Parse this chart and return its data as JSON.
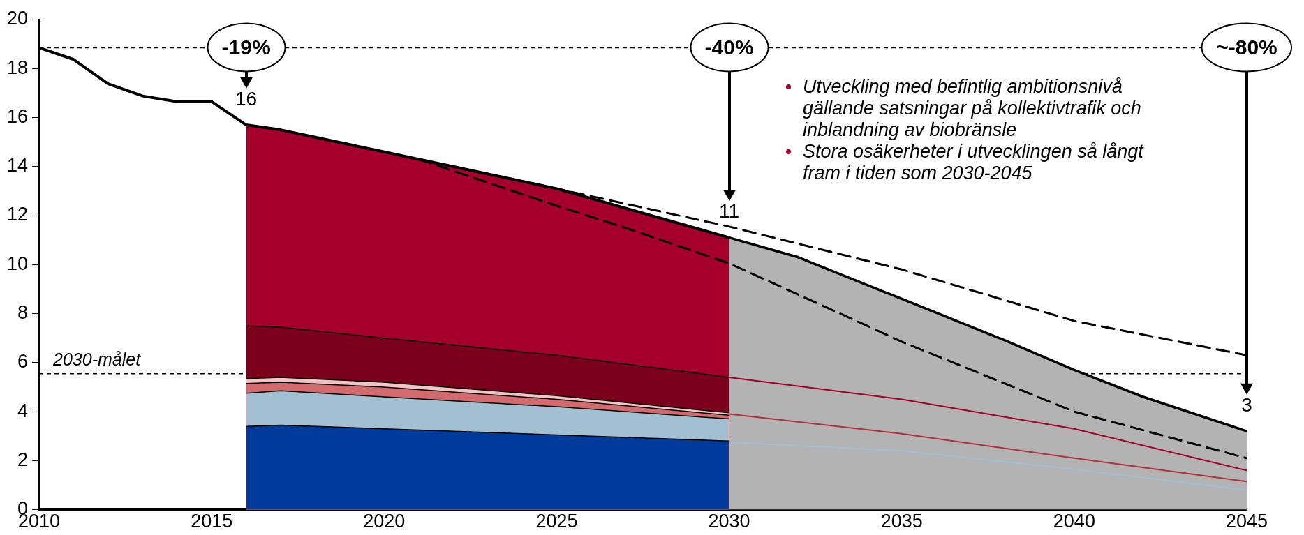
{
  "chart_data": {
    "type": "area",
    "stacked": true,
    "xlim": [
      2010,
      2045
    ],
    "xticks": [
      2010,
      2015,
      2020,
      2025,
      2030,
      2035,
      2040,
      2045
    ],
    "ylim": [
      0,
      20
    ],
    "yticks": [
      0,
      2,
      4,
      6,
      8,
      10,
      12,
      14,
      16,
      18,
      20
    ],
    "grid": false,
    "legend": false,
    "marker": "none",
    "x": [
      2016,
      2017,
      2020,
      2025,
      2030,
      2030,
      2032,
      2035,
      2038,
      2040,
      2042,
      2045
    ],
    "series": [
      {
        "type": "area",
        "color": "#003a9b",
        "values": [
          3.4,
          3.45,
          3.3,
          3.05,
          2.8,
          null,
          null,
          null,
          null,
          null,
          null,
          null
        ]
      },
      {
        "type": "area",
        "color": "#a3bfd2",
        "values": [
          1.35,
          1.4,
          1.3,
          1.15,
          0.9,
          null,
          null,
          null,
          null,
          null,
          null,
          null
        ]
      },
      {
        "type": "area",
        "color": "#d36b6e",
        "values": [
          0.4,
          0.35,
          0.4,
          0.3,
          0.15,
          null,
          null,
          null,
          null,
          null,
          null,
          null
        ]
      },
      {
        "type": "area",
        "color": "#f2c4c4",
        "values": [
          0.2,
          0.2,
          0.2,
          0.15,
          0.1,
          null,
          null,
          null,
          null,
          null,
          null,
          null
        ]
      },
      {
        "type": "area",
        "color": "#7b001c",
        "values": [
          2.15,
          2.05,
          1.8,
          1.65,
          1.45,
          null,
          null,
          null,
          null,
          null,
          null,
          null
        ]
      },
      {
        "type": "area",
        "color": "#a5002b",
        "values": [
          8.2,
          8.05,
          7.6,
          6.8,
          5.7,
          null,
          null,
          null,
          null,
          null,
          null,
          null
        ]
      },
      {
        "type": "area",
        "color": "#b3b3b3",
        "values": [
          null,
          null,
          null,
          null,
          null,
          11.1,
          10.3,
          8.6,
          6.9,
          5.7,
          4.6,
          3.2
        ]
      },
      {
        "type": "line",
        "color": "#a5002b",
        "x": [
          2030,
          2035,
          2040,
          2045
        ],
        "values": [
          5.4,
          4.5,
          3.3,
          1.6
        ]
      },
      {
        "type": "line",
        "color": "#b0303f",
        "x": [
          2030,
          2035,
          2040,
          2045
        ],
        "values": [
          3.9,
          3.1,
          2.1,
          1.15
        ]
      },
      {
        "type": "line",
        "color": "#a3bfd2",
        "x": [
          2030,
          2035,
          2040,
          2045
        ],
        "values": [
          2.75,
          2.4,
          1.65,
          0.8
        ]
      },
      {
        "type": "line",
        "color": "#000000",
        "line_style": "dashed",
        "x": [
          2021,
          2025,
          2030,
          2035,
          2040,
          2045
        ],
        "values": [
          14.3,
          13.1,
          11.55,
          9.8,
          7.7,
          6.3
        ]
      },
      {
        "type": "line",
        "color": "#000000",
        "line_style": "dashed",
        "x": [
          2021,
          2025,
          2027,
          2030,
          2034,
          2035,
          2040,
          2045
        ],
        "values": [
          14.3,
          12.4,
          11.5,
          10.05,
          7.5,
          6.85,
          4.0,
          2.1
        ]
      },
      {
        "type": "line",
        "color": "#000000",
        "x": [
          2010,
          2011,
          2012,
          2013,
          2014,
          2015,
          2016,
          2017,
          2020,
          2025,
          2030
        ],
        "values": [
          18.85,
          18.37,
          17.38,
          16.88,
          16.65,
          16.65,
          15.7,
          15.5,
          14.6,
          13.1,
          11.1
        ]
      }
    ],
    "ref_lines": [
      {
        "axis": "y",
        "value": 18.85,
        "line_style": "dashed",
        "color": "#000000"
      },
      {
        "axis": "y",
        "value": 5.55,
        "label": "2030-målet",
        "line_style": "dashed",
        "color": "#000000"
      }
    ],
    "annotations": [
      {
        "text": "-19%",
        "x": 2016,
        "y": 18.85
      },
      {
        "text": "-40%",
        "x": 2030,
        "y": 18.85
      },
      {
        "text": "~-80%",
        "x": 2045,
        "y": 18.85
      },
      {
        "text": "16",
        "x": 2016,
        "y": 15.7
      },
      {
        "text": "11",
        "x": 2030,
        "y": 11.1
      },
      {
        "text": "3",
        "x": 2045,
        "y": 3.2
      },
      "Utveckling med befintlig ambitionsnivå gällande satsningar på kollektivtrafik och inblandning av biobränsle",
      "Stora osäkerheter i utvecklingen så långt fram i tiden som 2030-2045"
    ]
  }
}
